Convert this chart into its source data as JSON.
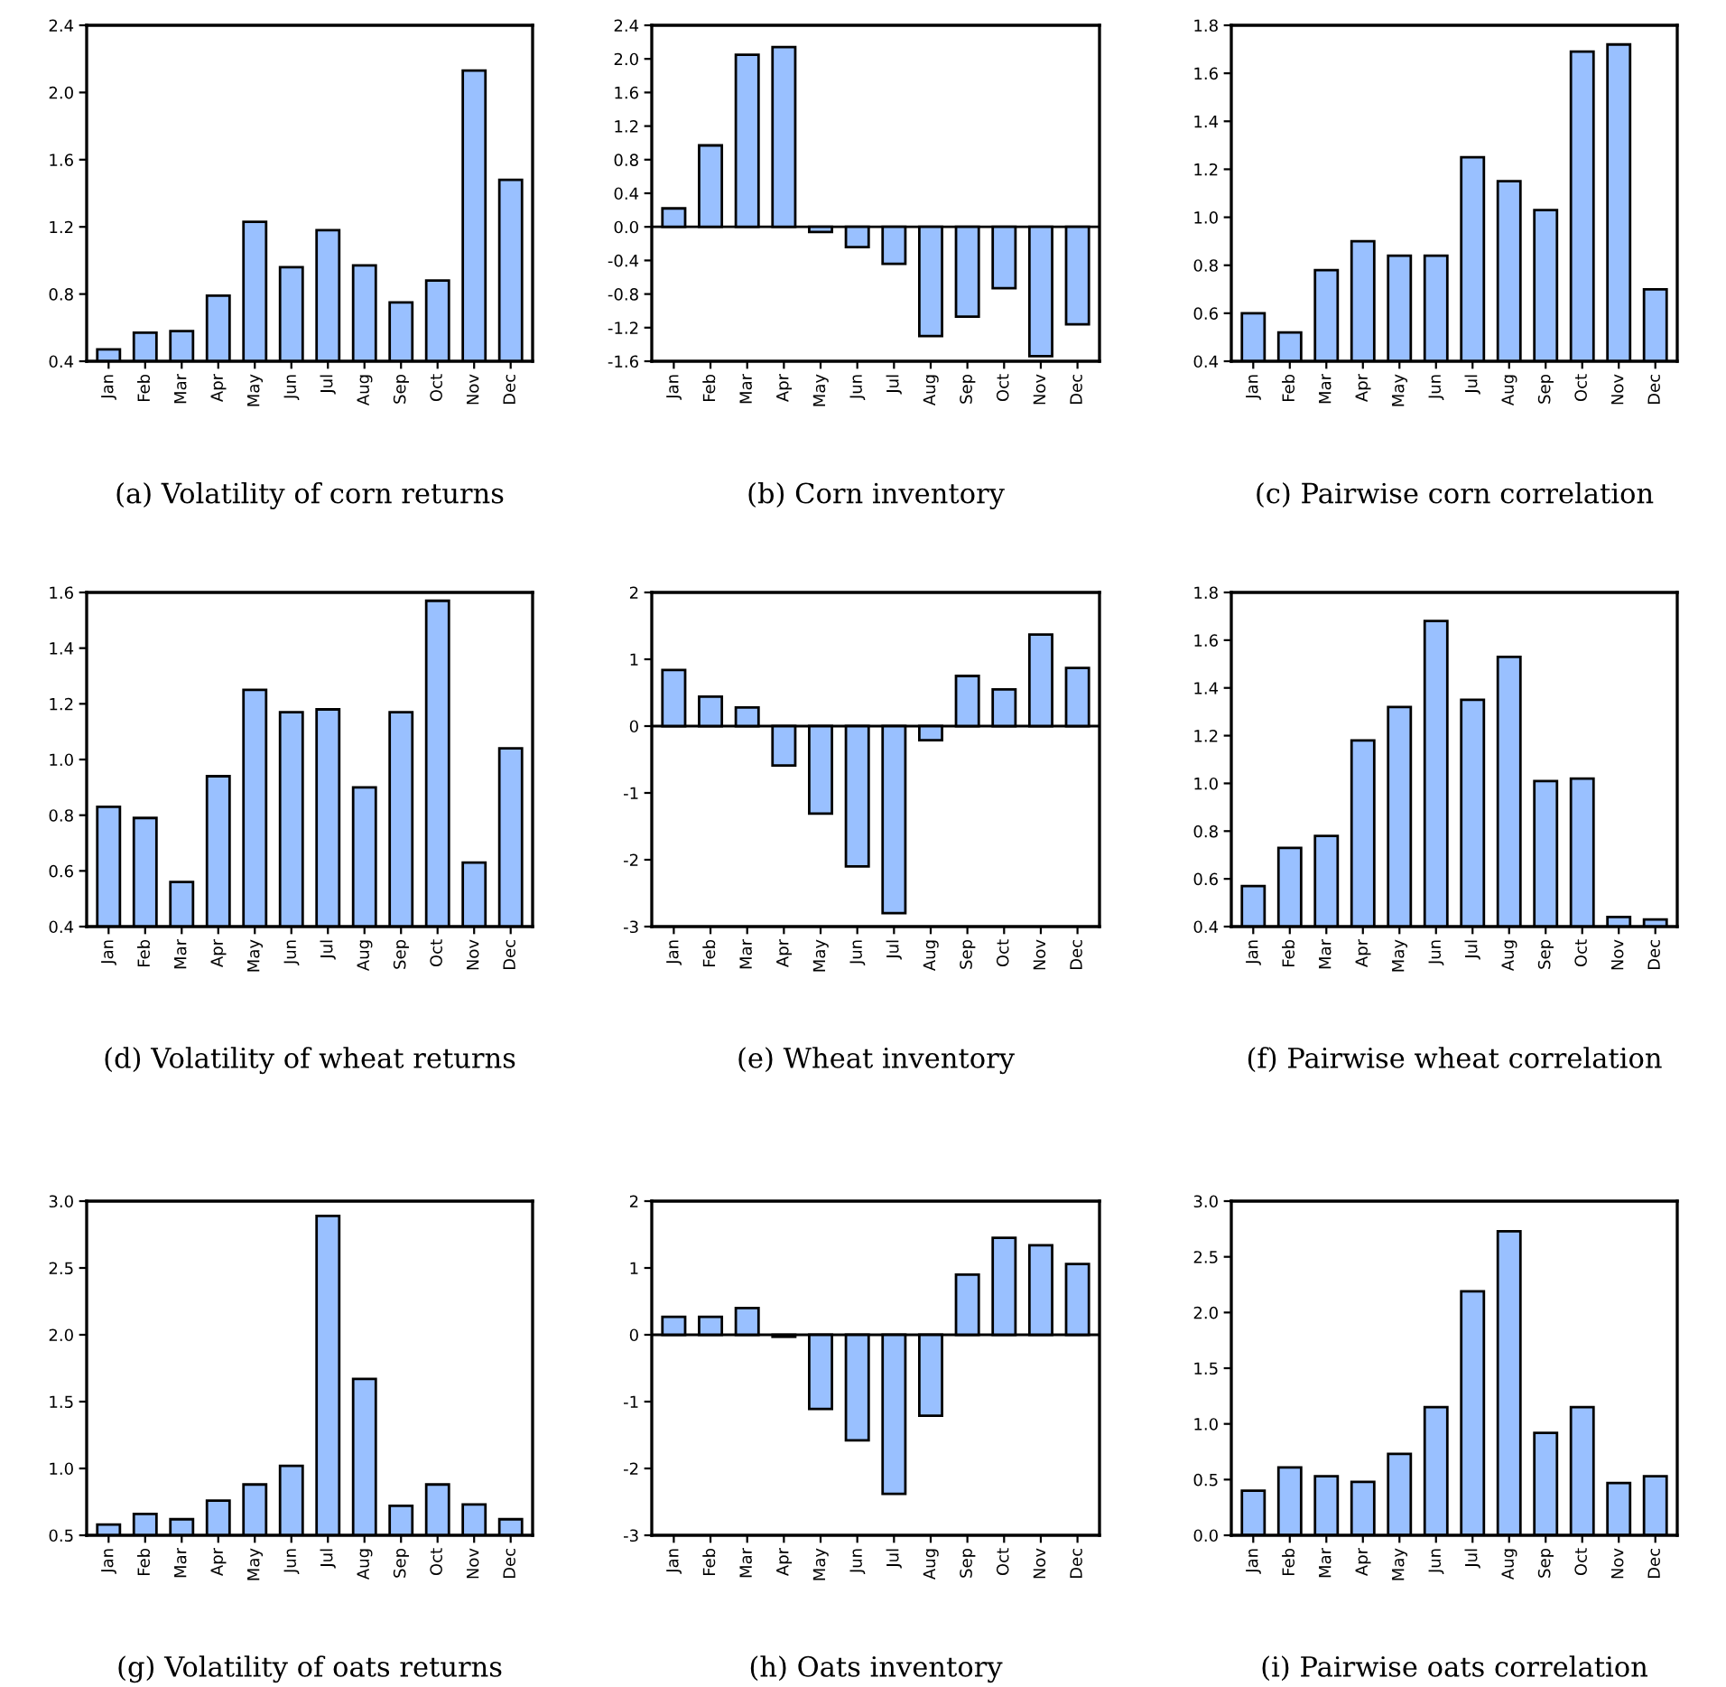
{
  "chart_data": [
    {
      "type": "bar",
      "title": "(a) Volatility of corn returns",
      "categories": [
        "Jan",
        "Feb",
        "Mar",
        "Apr",
        "May",
        "Jun",
        "Jul",
        "Aug",
        "Sep",
        "Oct",
        "Nov",
        "Dec"
      ],
      "values": [
        0.47,
        0.57,
        0.58,
        0.79,
        1.23,
        0.96,
        1.18,
        0.97,
        0.75,
        0.88,
        2.13,
        1.48
      ],
      "color": "#99c0ff",
      "ylim": [
        0.4,
        2.4
      ],
      "yticks": [
        0.4,
        0.8,
        1.2,
        1.6,
        {
          "value": 2,
          "label": "2.0"
        },
        2.4
      ],
      "grid": false
    },
    {
      "type": "bar",
      "title": "(b) Corn inventory",
      "categories": [
        "Jan",
        "Feb",
        "Mar",
        "Apr",
        "May",
        "Jun",
        "Jul",
        "Aug",
        "Sep",
        "Oct",
        "Nov",
        "Dec"
      ],
      "values": [
        0.22,
        0.97,
        2.05,
        2.14,
        -0.06,
        -0.24,
        -0.44,
        -1.3,
        -1.07,
        -0.73,
        -1.54,
        -1.16
      ],
      "color": "#99c0ff",
      "ylim": [
        -1.6,
        2.4
      ],
      "yticks": [
        -1.6,
        -1.2,
        -0.8,
        -0.4,
        {
          "value": 0,
          "label": "0.0"
        },
        0.4,
        0.8,
        1.2,
        1.6,
        {
          "value": 2,
          "label": "2.0"
        },
        2.4
      ],
      "ref_lines": [
        {
          "axis": "y",
          "value": 0
        }
      ],
      "grid": false
    },
    {
      "type": "bar",
      "title": "(c) Pairwise corn correlation",
      "categories": [
        "Jan",
        "Feb",
        "Mar",
        "Apr",
        "May",
        "Jun",
        "Jul",
        "Aug",
        "Sep",
        "Oct",
        "Nov",
        "Dec"
      ],
      "values": [
        0.6,
        0.52,
        0.78,
        0.9,
        0.84,
        0.84,
        1.25,
        1.15,
        1.03,
        1.69,
        1.72,
        0.7
      ],
      "color": "#99c0ff",
      "ylim": [
        0.4,
        1.8
      ],
      "yticks": [
        0.4,
        0.6,
        0.8,
        {
          "value": 1,
          "label": "1.0"
        },
        1.2,
        1.4,
        1.6,
        1.8
      ],
      "grid": false
    },
    {
      "type": "bar",
      "title": "(d) Volatility of wheat returns",
      "categories": [
        "Jan",
        "Feb",
        "Mar",
        "Apr",
        "May",
        "Jun",
        "Jul",
        "Aug",
        "Sep",
        "Oct",
        "Nov",
        "Dec"
      ],
      "values": [
        0.83,
        0.79,
        0.56,
        0.94,
        1.25,
        1.17,
        1.18,
        0.9,
        1.17,
        1.57,
        0.63,
        1.04
      ],
      "color": "#99c0ff",
      "ylim": [
        0.4,
        1.6
      ],
      "yticks": [
        0.4,
        0.6,
        0.8,
        {
          "value": 1,
          "label": "1.0"
        },
        1.2,
        1.4,
        1.6
      ],
      "grid": false
    },
    {
      "type": "bar",
      "title": "(e) Wheat inventory",
      "categories": [
        "Jan",
        "Feb",
        "Mar",
        "Apr",
        "May",
        "Jun",
        "Jul",
        "Aug",
        "Sep",
        "Oct",
        "Nov",
        "Dec"
      ],
      "values": [
        0.84,
        0.44,
        0.28,
        -0.59,
        -1.31,
        -2.1,
        -2.8,
        -0.21,
        0.75,
        0.55,
        1.37,
        0.87
      ],
      "color": "#99c0ff",
      "ylim": [
        -3,
        2
      ],
      "yticks": [
        -3,
        -2,
        -1,
        0,
        1,
        2
      ],
      "ref_lines": [
        {
          "axis": "y",
          "value": 0
        }
      ],
      "grid": false
    },
    {
      "type": "bar",
      "title": "(f) Pairwise wheat correlation",
      "categories": [
        "Jan",
        "Feb",
        "Mar",
        "Apr",
        "May",
        "Jun",
        "Jul",
        "Aug",
        "Sep",
        "Oct",
        "Nov",
        "Dec"
      ],
      "values": [
        0.57,
        0.73,
        0.78,
        1.18,
        1.32,
        1.68,
        1.35,
        1.53,
        1.01,
        1.02,
        0.44,
        0.43
      ],
      "color": "#99c0ff",
      "ylim": [
        0.4,
        1.8
      ],
      "yticks": [
        0.4,
        0.6,
        0.8,
        {
          "value": 1,
          "label": "1.0"
        },
        1.2,
        1.4,
        1.6,
        1.8
      ],
      "grid": false
    },
    {
      "type": "bar",
      "title": "(g) Volatility of oats returns",
      "categories": [
        "Jan",
        "Feb",
        "Mar",
        "Apr",
        "May",
        "Jun",
        "Jul",
        "Aug",
        "Sep",
        "Oct",
        "Nov",
        "Dec"
      ],
      "values": [
        0.58,
        0.66,
        0.62,
        0.76,
        0.88,
        1.02,
        2.89,
        1.67,
        0.72,
        0.88,
        0.73,
        0.62
      ],
      "color": "#99c0ff",
      "ylim": [
        0.5,
        3.0
      ],
      "yticks": [
        0.5,
        {
          "value": 1,
          "label": "1.0"
        },
        1.5,
        {
          "value": 2,
          "label": "2.0"
        },
        2.5,
        {
          "value": 3,
          "label": "3.0"
        }
      ],
      "grid": false
    },
    {
      "type": "bar",
      "title": "(h) Oats inventory",
      "categories": [
        "Jan",
        "Feb",
        "Mar",
        "Apr",
        "May",
        "Jun",
        "Jul",
        "Aug",
        "Sep",
        "Oct",
        "Nov",
        "Dec"
      ],
      "values": [
        0.27,
        0.27,
        0.4,
        -0.03,
        -1.11,
        -1.58,
        -2.38,
        -1.21,
        0.9,
        1.45,
        1.34,
        1.06
      ],
      "color": "#99c0ff",
      "ylim": [
        -3,
        2
      ],
      "yticks": [
        -3,
        -2,
        -1,
        0,
        1,
        2
      ],
      "ref_lines": [
        {
          "axis": "y",
          "value": 0
        }
      ],
      "grid": false
    },
    {
      "type": "bar",
      "title": "(i) Pairwise oats correlation",
      "categories": [
        "Jan",
        "Feb",
        "Mar",
        "Apr",
        "May",
        "Jun",
        "Jul",
        "Aug",
        "Sep",
        "Oct",
        "Nov",
        "Dec"
      ],
      "values": [
        0.4,
        0.61,
        0.53,
        0.48,
        0.73,
        1.15,
        2.19,
        2.73,
        0.92,
        1.15,
        0.47,
        0.53
      ],
      "color": "#99c0ff",
      "ylim": [
        0.0,
        3.0
      ],
      "yticks": [
        {
          "value": 0,
          "label": "0.0"
        },
        0.5,
        {
          "value": 1,
          "label": "1.0"
        },
        1.5,
        {
          "value": 2,
          "label": "2.0"
        },
        2.5,
        {
          "value": 3,
          "label": "3.0"
        }
      ],
      "grid": false
    }
  ]
}
